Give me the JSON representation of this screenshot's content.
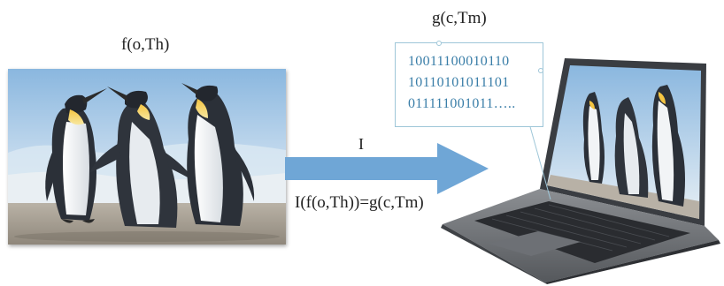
{
  "labels": {
    "source_function": "f(o,Th)",
    "target_function": "g(c,Tm)",
    "transform_symbol": "I",
    "equation": "I(f(o,Th))=g(c,Tm)"
  },
  "binary_bubble": {
    "lines": [
      "10011100010110",
      "10110101011101",
      "011111001011….."
    ]
  },
  "colors": {
    "arrow": "#6fa6d6",
    "bubble_border": "#9ec6d8",
    "binary_text": "#3a7ea8"
  }
}
